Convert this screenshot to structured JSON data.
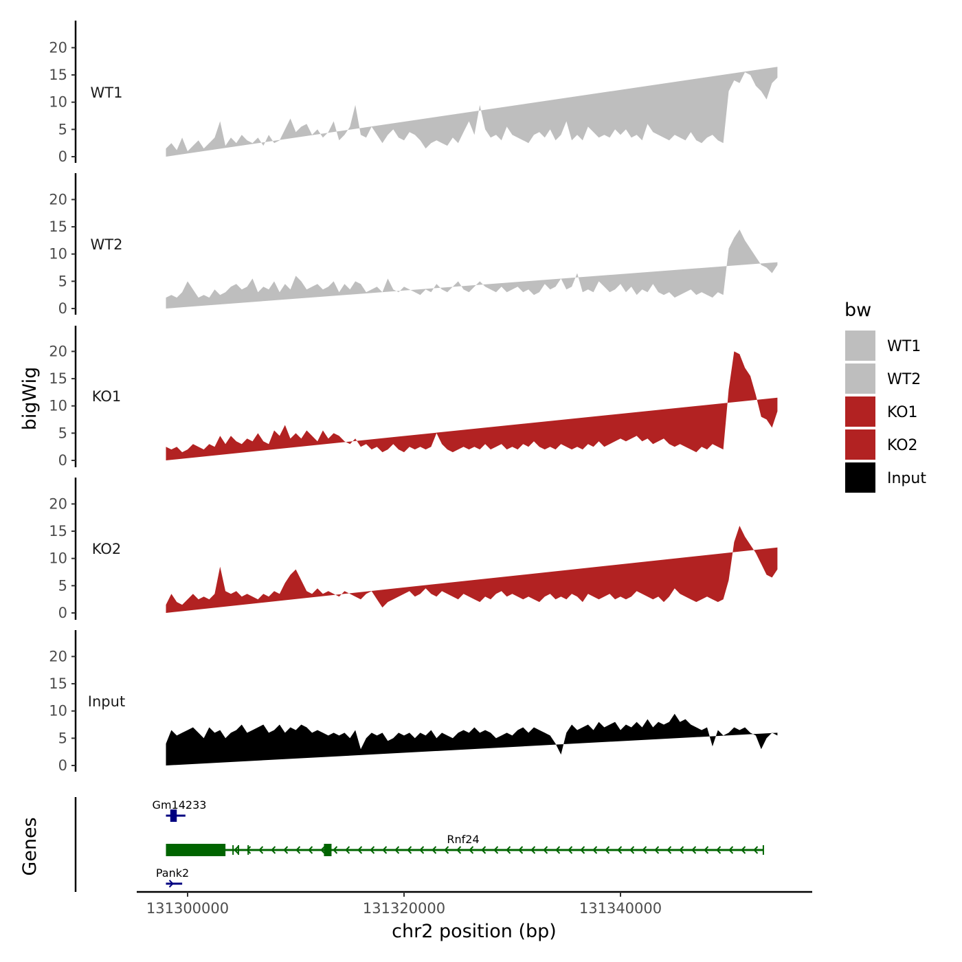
{
  "chart_data": {
    "type": "area",
    "xlabel": "chr2 position (bp)",
    "ylabel": "bigWig",
    "genes_label": "Genes",
    "xlim": [
      131296000,
      131358500
    ],
    "ylim": [
      0,
      24
    ],
    "x_ticks": [
      131300000,
      131320000,
      131340000
    ],
    "x_tick_labels": [
      "131300000",
      "131320000",
      "131340000"
    ],
    "y_ticks": [
      0,
      5,
      10,
      15,
      20
    ],
    "y_tick_labels": [
      "0",
      "5",
      "10",
      "15",
      "20"
    ],
    "legend": {
      "title": "bw",
      "entries": [
        {
          "label": "WT1",
          "color": "#bebebe"
        },
        {
          "label": "WT2",
          "color": "#bebebe"
        },
        {
          "label": "KO1",
          "color": "#b22222"
        },
        {
          "label": "KO2",
          "color": "#b22222"
        },
        {
          "label": "Input",
          "color": "#000000"
        }
      ]
    },
    "signal_x": [
      131298000,
      131298500,
      131299000,
      131299500,
      131300000,
      131300500,
      131301000,
      131301500,
      131302000,
      131302500,
      131303000,
      131303500,
      131304000,
      131304500,
      131305000,
      131305500,
      131306000,
      131306500,
      131307000,
      131307500,
      131308000,
      131308500,
      131309000,
      131309500,
      131310000,
      131310500,
      131311000,
      131311500,
      131312000,
      131312500,
      131313000,
      131313500,
      131314000,
      131314500,
      131315000,
      131315500,
      131316000,
      131316500,
      131317000,
      131317500,
      131318000,
      131318500,
      131319000,
      131319500,
      131320000,
      131320500,
      131321000,
      131321500,
      131322000,
      131322500,
      131323000,
      131323500,
      131324000,
      131324500,
      131325000,
      131325500,
      131326000,
      131326500,
      131327000,
      131327500,
      131328000,
      131328500,
      131329000,
      131329500,
      131330000,
      131330500,
      131331000,
      131331500,
      131332000,
      131332500,
      131333000,
      131333500,
      131334000,
      131334500,
      131335000,
      131335500,
      131336000,
      131336500,
      131337000,
      131337500,
      131338000,
      131338500,
      131339000,
      131339500,
      131340000,
      131340500,
      131341000,
      131341500,
      131342000,
      131342500,
      131343000,
      131343500,
      131344000,
      131344500,
      131345000,
      131345500,
      131346000,
      131346500,
      131347000,
      131347500,
      131348000,
      131348500,
      131349000,
      131349500,
      131350000,
      131350500,
      131351000,
      131351500,
      131352000,
      131352500,
      131353000,
      131353500,
      131354000,
      131354500,
      131354500
    ],
    "series": [
      {
        "name": "WT1",
        "color": "#bebebe",
        "values": [
          1.5,
          2.5,
          1.2,
          3.5,
          1.0,
          2.0,
          3.0,
          1.5,
          2.5,
          3.5,
          6.5,
          2.0,
          3.5,
          2.5,
          4.0,
          3.0,
          2.5,
          3.5,
          2.0,
          4.0,
          2.5,
          3.0,
          5.0,
          7.0,
          4.5,
          5.5,
          6.0,
          4.0,
          5.0,
          3.5,
          4.5,
          6.5,
          3.0,
          4.0,
          5.5,
          9.5,
          4.0,
          3.5,
          5.5,
          4.0,
          2.5,
          4.0,
          5.0,
          3.5,
          3.0,
          4.5,
          4.0,
          3.0,
          1.5,
          2.5,
          3.0,
          2.5,
          2.0,
          3.5,
          2.5,
          4.5,
          6.5,
          4.0,
          9.5,
          5.0,
          3.5,
          4.0,
          3.0,
          5.5,
          4.0,
          3.5,
          3.0,
          2.5,
          4.0,
          4.5,
          3.5,
          5.0,
          3.0,
          4.0,
          6.5,
          3.0,
          4.0,
          3.0,
          5.5,
          4.5,
          3.5,
          4.0,
          3.5,
          5.0,
          4.0,
          5.0,
          3.5,
          4.0,
          3.0,
          6.0,
          4.5,
          4.0,
          3.5,
          3.0,
          4.0,
          3.5,
          3.0,
          4.5,
          3.0,
          2.5,
          3.5,
          4.0,
          3.0,
          2.5,
          12.0,
          14.0,
          13.5,
          15.5,
          15.0,
          13.0,
          12.0,
          10.5,
          13.5,
          14.5,
          16.5,
          0
        ]
      },
      {
        "name": "WT2",
        "color": "#bebebe",
        "values": [
          2.0,
          2.5,
          2.0,
          3.0,
          5.0,
          3.5,
          2.0,
          2.5,
          2.0,
          3.5,
          2.5,
          3.0,
          4.0,
          4.5,
          3.5,
          4.0,
          5.5,
          3.0,
          4.0,
          3.5,
          5.0,
          3.0,
          4.5,
          3.5,
          6.0,
          5.0,
          3.5,
          4.0,
          4.5,
          3.5,
          4.0,
          5.0,
          3.0,
          4.5,
          3.5,
          5.0,
          4.5,
          3.0,
          3.5,
          4.0,
          3.0,
          5.5,
          3.5,
          3.0,
          4.0,
          3.5,
          3.0,
          2.5,
          3.5,
          3.0,
          4.5,
          3.5,
          3.0,
          4.0,
          5.0,
          3.5,
          3.0,
          4.0,
          5.0,
          4.0,
          3.5,
          3.0,
          4.0,
          3.0,
          3.5,
          4.0,
          3.0,
          3.5,
          2.5,
          3.0,
          4.5,
          3.5,
          4.0,
          5.5,
          3.5,
          4.0,
          6.5,
          3.0,
          3.5,
          3.0,
          5.0,
          4.0,
          3.0,
          3.5,
          4.5,
          3.0,
          4.0,
          2.5,
          3.5,
          3.0,
          4.5,
          3.0,
          2.5,
          3.0,
          2.0,
          2.5,
          3.0,
          3.5,
          2.5,
          3.0,
          2.5,
          2.0,
          3.0,
          2.5,
          11.0,
          13.0,
          14.5,
          12.5,
          11.0,
          9.5,
          8.0,
          7.5,
          6.5,
          8.0,
          8.5,
          0
        ]
      },
      {
        "name": "KO1",
        "color": "#b22222",
        "values": [
          2.5,
          2.0,
          2.5,
          1.5,
          2.0,
          3.0,
          2.5,
          2.0,
          3.0,
          2.5,
          4.5,
          3.0,
          4.5,
          3.5,
          3.0,
          4.0,
          3.5,
          5.0,
          3.5,
          3.0,
          5.5,
          4.5,
          6.5,
          4.0,
          5.0,
          4.0,
          5.5,
          4.5,
          3.5,
          5.5,
          4.0,
          5.0,
          4.5,
          3.5,
          3.0,
          4.0,
          2.5,
          3.0,
          2.0,
          2.5,
          1.5,
          2.0,
          3.0,
          2.0,
          1.5,
          2.5,
          2.0,
          2.5,
          2.0,
          2.5,
          5.0,
          3.0,
          2.0,
          1.5,
          2.0,
          2.5,
          2.0,
          2.5,
          2.0,
          3.0,
          2.0,
          2.5,
          3.0,
          2.0,
          2.5,
          2.0,
          3.0,
          2.5,
          3.5,
          2.5,
          2.0,
          2.5,
          2.0,
          3.0,
          2.5,
          2.0,
          2.5,
          2.0,
          3.0,
          2.5,
          3.5,
          2.5,
          3.0,
          3.5,
          4.0,
          3.5,
          4.0,
          4.5,
          3.5,
          4.0,
          3.0,
          3.5,
          4.0,
          3.0,
          2.5,
          3.0,
          2.5,
          2.0,
          1.5,
          2.5,
          2.0,
          3.0,
          2.5,
          2.0,
          13.0,
          20.0,
          19.5,
          17.0,
          15.5,
          12.0,
          8.0,
          7.5,
          6.0,
          9.0,
          11.5,
          0
        ]
      },
      {
        "name": "KO2",
        "color": "#b22222",
        "values": [
          1.5,
          3.5,
          2.0,
          1.5,
          2.5,
          3.5,
          2.5,
          3.0,
          2.5,
          3.5,
          8.5,
          4.0,
          3.5,
          4.0,
          3.0,
          3.5,
          3.0,
          2.5,
          3.5,
          3.0,
          4.0,
          3.5,
          5.5,
          7.0,
          8.0,
          6.0,
          4.0,
          3.5,
          4.5,
          3.5,
          4.0,
          3.5,
          3.0,
          4.0,
          3.5,
          3.0,
          2.5,
          3.5,
          4.0,
          2.5,
          1.0,
          2.0,
          2.5,
          3.0,
          3.5,
          4.0,
          3.0,
          3.5,
          4.5,
          3.5,
          3.0,
          4.0,
          3.5,
          3.0,
          2.5,
          3.5,
          3.0,
          2.5,
          2.0,
          3.0,
          2.5,
          3.5,
          4.0,
          3.0,
          3.5,
          3.0,
          2.5,
          3.0,
          2.5,
          2.0,
          3.0,
          3.5,
          2.5,
          3.0,
          2.5,
          3.5,
          3.0,
          2.0,
          3.5,
          3.0,
          2.5,
          3.0,
          3.5,
          2.5,
          3.0,
          2.5,
          3.0,
          4.0,
          3.5,
          3.0,
          2.5,
          3.0,
          2.0,
          3.0,
          4.5,
          3.5,
          3.0,
          2.5,
          2.0,
          2.5,
          3.0,
          2.5,
          2.0,
          2.5,
          6.0,
          13.0,
          16.0,
          14.0,
          12.5,
          11.0,
          9.0,
          7.0,
          6.5,
          8.0,
          12.0,
          0
        ]
      },
      {
        "name": "Input",
        "color": "#000000",
        "values": [
          4.0,
          6.5,
          5.5,
          6.0,
          6.5,
          7.0,
          6.0,
          5.0,
          7.0,
          6.0,
          6.5,
          5.0,
          6.0,
          6.5,
          7.5,
          6.0,
          6.5,
          7.0,
          7.5,
          6.0,
          6.5,
          7.5,
          6.0,
          7.0,
          6.5,
          7.5,
          7.0,
          6.0,
          6.5,
          6.0,
          5.5,
          6.0,
          5.5,
          6.0,
          5.0,
          6.5,
          3.0,
          5.0,
          6.0,
          5.5,
          6.0,
          4.5,
          5.0,
          6.0,
          5.5,
          6.0,
          5.0,
          6.0,
          5.5,
          6.5,
          5.0,
          6.0,
          5.5,
          5.0,
          6.0,
          6.5,
          6.0,
          7.0,
          6.0,
          6.5,
          6.0,
          5.0,
          5.5,
          6.0,
          5.5,
          6.5,
          7.0,
          6.0,
          7.0,
          6.5,
          6.0,
          5.5,
          4.0,
          2.0,
          6.0,
          7.5,
          6.5,
          7.0,
          7.5,
          6.5,
          8.0,
          7.0,
          7.5,
          8.0,
          6.5,
          7.5,
          7.0,
          8.0,
          7.0,
          8.5,
          7.0,
          8.0,
          7.5,
          8.0,
          9.5,
          8.0,
          8.5,
          7.5,
          7.0,
          6.5,
          7.0,
          3.5,
          6.5,
          5.5,
          6.0,
          7.0,
          6.5,
          7.0,
          6.0,
          5.5,
          3.0,
          5.0,
          6.0,
          5.5,
          6.0,
          0
        ]
      }
    ],
    "genes": [
      {
        "name": "Gm14233",
        "start": 131298000,
        "end": 131299800,
        "strand": "+",
        "color": "#000080",
        "exons": [
          [
            131298400,
            131299000
          ]
        ]
      },
      {
        "name": "Rnf24",
        "start": 131298000,
        "end": 131353200,
        "strand": "-",
        "color": "#006400",
        "exons": [
          [
            131298000,
            131303500
          ],
          [
            131312600,
            131313300
          ]
        ],
        "marks": [
          131304200,
          131304700,
          131305600
        ]
      },
      {
        "name": "Pank2",
        "start": 131298000,
        "end": 131299500,
        "strand": "+",
        "color": "#000080",
        "exons": []
      }
    ]
  }
}
